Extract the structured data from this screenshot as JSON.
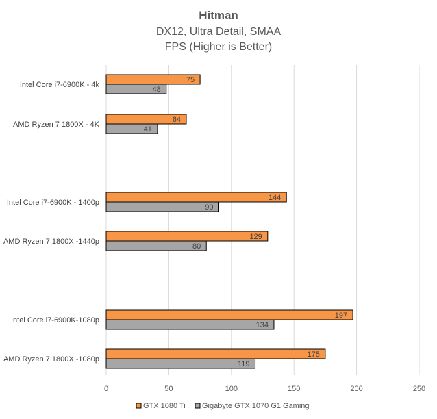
{
  "chart_data": {
    "type": "bar",
    "orientation": "horizontal",
    "title": "Hitman",
    "subtitle_lines": [
      "DX12, Ultra Detail, SMAA",
      "FPS (Higher is Better)"
    ],
    "categories": [
      "Intel Core i7-6900K - 4k",
      "AMD Ryzen 7 1800X - 4K",
      "Intel Core i7-6900K - 1400p",
      "AMD Ryzen 7 1800X -1440p",
      "Intel Core i7-6900K-1080p",
      "AMD Ryzen 7 1800X -1080p"
    ],
    "series": [
      {
        "name": "GTX 1080 Ti",
        "color": "#f79646",
        "values": [
          75,
          64,
          144,
          129,
          197,
          175
        ]
      },
      {
        "name": "Gigabyte GTX 1070 G1 Gaming",
        "color": "#a6a6a6",
        "values": [
          48,
          41,
          90,
          80,
          134,
          119
        ]
      }
    ],
    "xlim": [
      0,
      250
    ],
    "xticks": [
      "0",
      "50",
      "100",
      "150",
      "200",
      "250"
    ],
    "grid": true,
    "legend": "bottom",
    "xlabel": "",
    "ylabel": ""
  }
}
